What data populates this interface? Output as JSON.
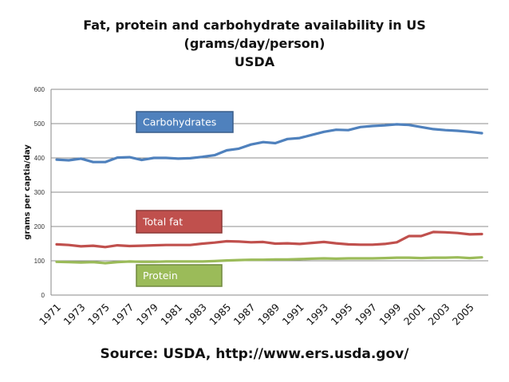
{
  "title_lines": [
    "Fat, protein and carbohydrate availability in US",
    "(grams/day/person)",
    "USDA"
  ],
  "source": "Source: USDA, http://www.ers.usda.gov/",
  "chart_data": {
    "type": "line",
    "title": "Fat, protein and carbohydrate availability in US (grams/day/person) USDA",
    "xlabel": "",
    "ylabel": "grams per captia/day",
    "ylim": [
      0,
      600
    ],
    "yticks": [
      0,
      100,
      200,
      300,
      400,
      500,
      600
    ],
    "grid": true,
    "x": [
      1971,
      1972,
      1973,
      1974,
      1975,
      1976,
      1977,
      1978,
      1979,
      1980,
      1981,
      1982,
      1983,
      1984,
      1985,
      1986,
      1987,
      1988,
      1989,
      1990,
      1991,
      1992,
      1993,
      1994,
      1995,
      1996,
      1997,
      1998,
      1999,
      2000,
      2001,
      2002,
      2003,
      2004,
      2005,
      2006
    ],
    "xtick_labels": [
      "1971",
      "1973",
      "1975",
      "1977",
      "1979",
      "1981",
      "1983",
      "1985",
      "1987",
      "1989",
      "1991",
      "1993",
      "1995",
      "1997",
      "1999",
      "2001",
      "2003",
      "2005"
    ],
    "series": [
      {
        "name": "Carbohydrates",
        "color": "#4F81BD",
        "values": [
          395,
          393,
          398,
          388,
          388,
          401,
          402,
          394,
          400,
          400,
          398,
          399,
          403,
          408,
          422,
          427,
          439,
          446,
          443,
          455,
          458,
          467,
          476,
          482,
          481,
          490,
          493,
          495,
          498,
          496,
          490,
          484,
          481,
          479,
          476,
          472
        ]
      },
      {
        "name": "Total fat",
        "color": "#C0504D",
        "values": [
          148,
          146,
          142,
          144,
          140,
          145,
          143,
          144,
          145,
          146,
          146,
          146,
          150,
          153,
          157,
          156,
          154,
          155,
          150,
          151,
          149,
          152,
          155,
          151,
          148,
          147,
          147,
          149,
          154,
          172,
          172,
          184,
          183,
          181,
          177,
          178
        ]
      },
      {
        "name": "Protein",
        "color": "#9BBB59",
        "values": [
          97,
          96,
          95,
          96,
          93,
          96,
          98,
          97,
          97,
          98,
          98,
          98,
          98,
          99,
          101,
          102,
          103,
          103,
          104,
          104,
          105,
          106,
          107,
          106,
          107,
          107,
          107,
          108,
          109,
          109,
          108,
          109,
          109,
          110,
          108,
          110
        ]
      }
    ],
    "labels": [
      {
        "text": "Carbohydrates",
        "series": "Carbohydrates"
      },
      {
        "text": "Total fat",
        "series": "Total fat"
      },
      {
        "text": "Protein",
        "series": "Protein"
      }
    ]
  }
}
